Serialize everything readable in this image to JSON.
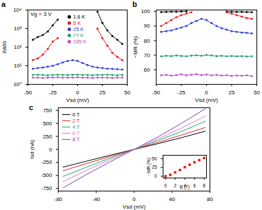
{
  "chart_data": [
    {
      "panel": "a",
      "type": "line",
      "marker": "circle",
      "log": "y",
      "xlabel": "Vsd (mV)",
      "ylabel": "IM/I0",
      "annotations": [
        {
          "text": "Vg = 3 V"
        }
      ],
      "legend": "top",
      "xlim": [
        -50,
        50
      ],
      "xticks": [
        -50,
        -25,
        0,
        25,
        50
      ],
      "ylim": [
        1,
        10000
      ],
      "yticks": [
        {
          "value": 1,
          "label": "10⁰"
        },
        {
          "value": 10,
          "label": "10¹"
        },
        {
          "value": 100,
          "label": "10²"
        },
        {
          "value": 1000,
          "label": "10³"
        },
        {
          "value": 10000,
          "label": "10⁴"
        }
      ],
      "x": [
        -45,
        -40,
        -35,
        -30,
        -25,
        -20,
        -15,
        -10,
        -5,
        0,
        5,
        10,
        15,
        20,
        25,
        30,
        35,
        40,
        45
      ],
      "series": [
        {
          "name": "1.6 K",
          "color": "#000000",
          "values": [
            250,
            350,
            450,
            700,
            1500,
            3000,
            null,
            null,
            null,
            null,
            null,
            null,
            null,
            8000,
            2000,
            800,
            400,
            250,
            150
          ]
        },
        {
          "name": "5 K",
          "color": "#e41a1c",
          "values": [
            20,
            25,
            40,
            80,
            200,
            300,
            null,
            null,
            null,
            null,
            null,
            null,
            null,
            1000,
            300,
            120,
            50,
            30,
            20
          ]
        },
        {
          "name": "25 K",
          "color": "#2b3fd6",
          "values": [
            7,
            7.5,
            8,
            9,
            10,
            12,
            15,
            18,
            20,
            18,
            14,
            11,
            9,
            8,
            7.5,
            7,
            6.8,
            6.5,
            6.3
          ]
        },
        {
          "name": "77 K",
          "color": "#1aa36a",
          "values": [
            3.2,
            3.3,
            3.2,
            3.1,
            3.2,
            3.3,
            3.2,
            3.2,
            3.3,
            3.3,
            3.2,
            3.2,
            3.1,
            3.2,
            3.2,
            3.3,
            3.2,
            3.1,
            3.2
          ]
        },
        {
          "name": "285 K",
          "color": "#c050c0",
          "values": [
            2.3,
            2.3,
            2.2,
            2.3,
            2.3,
            2.4,
            2.3,
            2.3,
            2.3,
            2.4,
            2.3,
            2.3,
            2.2,
            2.3,
            2.3,
            2.3,
            2.2,
            2.3,
            2.3
          ]
        }
      ]
    },
    {
      "panel": "b",
      "type": "line",
      "marker": "circle",
      "xlabel": "Vsd (mV)",
      "ylabel": "−MR (%)",
      "xlim": [
        -50,
        50
      ],
      "xticks": [
        -50,
        -25,
        0,
        25,
        50
      ],
      "ylim": [
        50,
        101
      ],
      "yticks": [
        60,
        70,
        80,
        90,
        100
      ],
      "x": [
        -45,
        -40,
        -35,
        -30,
        -25,
        -20,
        -15,
        -10,
        -5,
        0,
        5,
        10,
        15,
        20,
        25,
        30,
        35,
        40,
        45
      ],
      "series": [
        {
          "name": "1.6 K",
          "color": "#000000",
          "values": [
            99.6,
            99.7,
            99.8,
            99.8,
            99.9,
            100,
            null,
            null,
            null,
            null,
            null,
            null,
            null,
            99.9,
            99.8,
            99.7,
            99.7,
            99.6,
            99.5
          ]
        },
        {
          "name": "5 K",
          "color": "#e41a1c",
          "values": [
            90,
            92,
            94,
            96,
            97.5,
            98.5,
            99.5,
            null,
            null,
            null,
            null,
            null,
            null,
            99.5,
            98.5,
            97.5,
            96.5,
            95.5,
            95
          ]
        },
        {
          "name": "25 K",
          "color": "#2b3fd6",
          "values": [
            86,
            86.5,
            87,
            88,
            89,
            90,
            92,
            93.5,
            95,
            94,
            92,
            90,
            88.5,
            87.5,
            86.5,
            86,
            85.5,
            85.3,
            85
          ]
        },
        {
          "name": "77 K",
          "color": "#1aa36a",
          "values": [
            69.2,
            69.6,
            69.4,
            69.8,
            69.5,
            69.3,
            69.7,
            70,
            69.6,
            70.2,
            69.8,
            69.4,
            69.6,
            69.3,
            69.5,
            69.2,
            69.4,
            69.1,
            69.3
          ]
        },
        {
          "name": "285 K",
          "color": "#c050c0",
          "values": [
            56.2,
            56.5,
            56,
            56.4,
            56.8,
            56.3,
            56.6,
            57,
            56.4,
            56.7,
            56.2,
            56.5,
            56,
            56.3,
            55.8,
            56.1,
            55.9,
            56.2,
            55.7
          ]
        }
      ]
    },
    {
      "panel": "c",
      "type": "line",
      "xlabel": "Vsd (mV)",
      "ylabel": "Isd (nA)",
      "legend": "top-left",
      "xlim": [
        -80,
        80
      ],
      "xticks": [
        -80,
        -40,
        0,
        40,
        80
      ],
      "ylim": [
        -800,
        800
      ],
      "yticks": [
        -750,
        -500,
        -250,
        0,
        250,
        500,
        750
      ],
      "x": [
        -75,
        -50,
        -25,
        0,
        25,
        50,
        75
      ],
      "series": [
        {
          "name": "0 T",
          "color": "#000000",
          "values": [
            -340,
            -225,
            -110,
            0,
            110,
            225,
            350
          ]
        },
        {
          "name": "2 T",
          "color": "#d62728",
          "values": [
            -410,
            -270,
            -135,
            0,
            135,
            275,
            420
          ]
        },
        {
          "name": "4 T",
          "color": "#1fa27a",
          "values": [
            -520,
            -340,
            -165,
            0,
            170,
            345,
            540
          ]
        },
        {
          "name": "6 T",
          "color": "#e377c2",
          "values": [
            -620,
            -400,
            -195,
            0,
            200,
            410,
            640
          ]
        },
        {
          "name": "8 T",
          "color": "#7b3fbf",
          "values": [
            -740,
            -480,
            -235,
            0,
            240,
            500,
            780
          ]
        }
      ]
    },
    {
      "type": "scatter",
      "marker": "square",
      "xlabel": "B (T)",
      "ylabel": "−MR (%)",
      "xlim": [
        -0.5,
        8.5
      ],
      "xticks": [
        0,
        2,
        4,
        6,
        8
      ],
      "ylim": [
        -5,
        60
      ],
      "yticks": [
        0,
        25,
        50
      ],
      "x": [
        0,
        1,
        2,
        3,
        4,
        5,
        6,
        7,
        8
      ],
      "series": [
        {
          "name": "−MR",
          "color": "#e41a1c",
          "values": [
            0,
            4,
            11,
            18,
            26,
            33,
            40,
            46,
            52
          ]
        }
      ]
    }
  ]
}
